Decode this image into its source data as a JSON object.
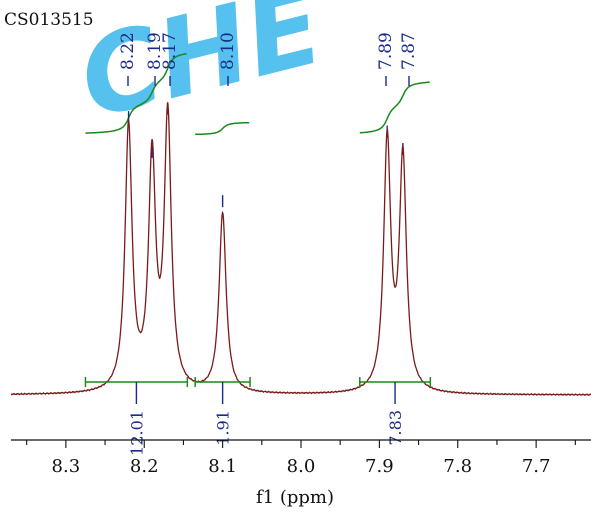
{
  "sample_id": "CS013515",
  "watermark": "CHE",
  "chart_data": {
    "type": "line",
    "title": "",
    "xlabel": "f1 (ppm)",
    "ylabel": "",
    "xlim": [
      8.37,
      7.63
    ],
    "x_reversed": true,
    "x_ticks": [
      8.3,
      8.2,
      8.1,
      8.0,
      7.9,
      7.8,
      7.7
    ],
    "x_tick_labels": [
      "8.3",
      "8.2",
      "8.1",
      "8.0",
      "7.9",
      "7.8",
      "7.7"
    ],
    "peaks": [
      {
        "ppm": 8.22,
        "height": 0.91,
        "label": "8.22"
      },
      {
        "ppm": 8.19,
        "height": 0.79,
        "label": "8.19"
      },
      {
        "ppm": 8.17,
        "height": 0.94,
        "label": "8.17"
      },
      {
        "ppm": 8.1,
        "height": 0.62,
        "label": "8.10"
      },
      {
        "ppm": 7.89,
        "height": 0.86,
        "label": "7.89"
      },
      {
        "ppm": 7.87,
        "height": 0.8,
        "label": "7.87"
      }
    ],
    "integrals": [
      {
        "from": 8.275,
        "to": 8.145,
        "value": "12.01"
      },
      {
        "from": 8.135,
        "to": 8.065,
        "value": "1.91"
      },
      {
        "from": 7.925,
        "to": 7.835,
        "value": "7.83"
      }
    ],
    "colors": {
      "spectrum": "#7a1a1a",
      "integral": "#1a8a1a",
      "peak_label": "#1a2a8a",
      "watermark": "#39b6ec"
    }
  }
}
